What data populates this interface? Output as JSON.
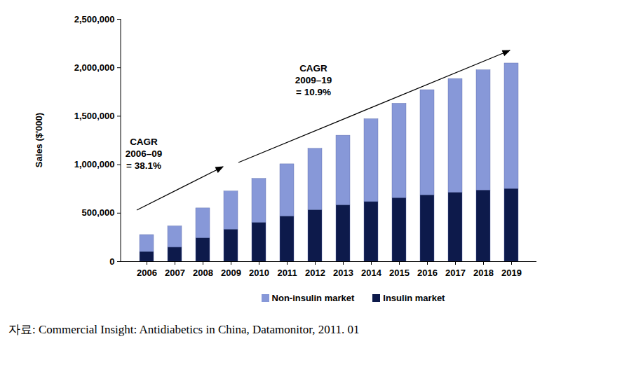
{
  "chart_data": {
    "type": "bar",
    "stacked": true,
    "y_label": "Sales ($'000)",
    "categories": [
      "2006",
      "2007",
      "2008",
      "2009",
      "2010",
      "2011",
      "2012",
      "2013",
      "2014",
      "2015",
      "2016",
      "2017",
      "2018",
      "2019"
    ],
    "series": [
      {
        "name": "Non-insulin market",
        "color": "#8798d8",
        "values": [
          175000,
          220000,
          310000,
          395000,
          455000,
          540000,
          635000,
          720000,
          855000,
          975000,
          1085000,
          1175000,
          1240000,
          1295000
        ]
      },
      {
        "name": "Insulin market",
        "color": "#0d1a4b",
        "values": [
          100000,
          145000,
          240000,
          330000,
          400000,
          465000,
          530000,
          580000,
          615000,
          655000,
          685000,
          710000,
          735000,
          750000
        ]
      }
    ],
    "ylim": [
      0,
      2500000
    ],
    "yticks": [
      0,
      {
        "value": 500000,
        "label": "500,000"
      },
      {
        "value": 1000000,
        "label": "1,000,000"
      },
      {
        "value": 1500000,
        "label": "1,500,000"
      },
      {
        "value": 2000000,
        "label": "2,000,000"
      },
      {
        "value": 2500000,
        "label": "2,500,000"
      }
    ],
    "grid": false,
    "legend": "bottom",
    "annotations": [
      {
        "text": [
          "CAGR",
          "2006–09",
          "= 38.1%"
        ]
      },
      {
        "text": [
          "CAGR",
          "2009–19",
          "= 10.9%"
        ]
      }
    ],
    "caption": "자료: Commercial Insight: Antidiabetics in China, Datamonitor, 2011. 01"
  }
}
